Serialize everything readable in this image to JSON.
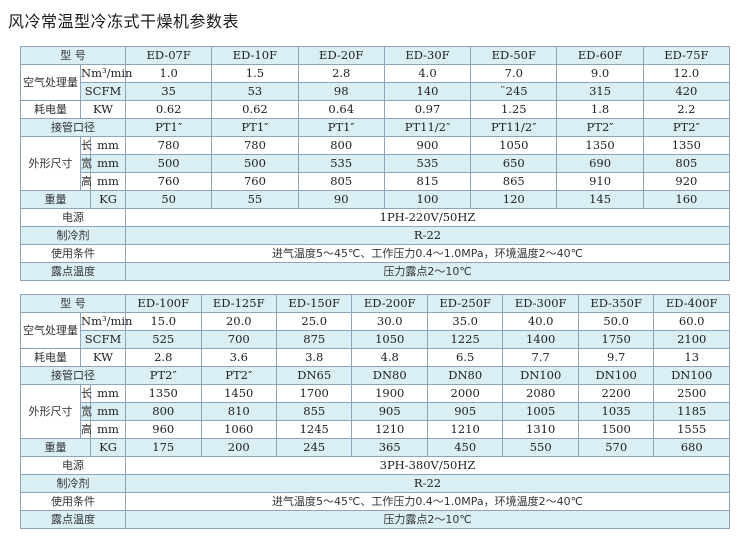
{
  "title": "风冷常温型冷冻式干燥机参数表",
  "labels": {
    "model": "型  号",
    "air": "空气处理量",
    "nm3": "Nm³/min",
    "scfm": "SCFM",
    "power": "耗电量",
    "kw": "KW",
    "pipe": "接管口径",
    "dims": "外形尺寸",
    "len": "长",
    "wid": "宽",
    "hgt": "高",
    "mm": "mm",
    "weight": "重量",
    "kg": "KG",
    "supply": "电源",
    "refrigerant": "制冷剂",
    "conditions": "使用条件",
    "dewpoint": "露点温度"
  },
  "colors": {
    "row_tint": "#d9eff4",
    "border": "#8fa4b8"
  },
  "tables": [
    {
      "models": [
        "ED-07F",
        "ED-10F",
        "ED-20F",
        "ED-30F",
        "ED-50F",
        "ED-60F",
        "ED-75F"
      ],
      "nm3": [
        "1.0",
        "1.5",
        "2.8",
        "4.0",
        "7.0",
        "9.0",
        "12.0"
      ],
      "scfm": [
        "35",
        "53",
        "98",
        "140",
        "¨245",
        "315",
        "420"
      ],
      "kw": [
        "0.62",
        "0.62",
        "0.64",
        "0.97",
        "1.25",
        "1.8",
        "2.2"
      ],
      "pipe": [
        "PT1″",
        "PT1″",
        "PT1″",
        "PT11/2″",
        "PT11/2″",
        "PT2″",
        "PT2″"
      ],
      "len": [
        "780",
        "780",
        "800",
        "900",
        "1050",
        "1350",
        "1350"
      ],
      "wid": [
        "500",
        "500",
        "535",
        "535",
        "650",
        "690",
        "805"
      ],
      "hgt": [
        "760",
        "760",
        "805",
        "815",
        "865",
        "910",
        "920"
      ],
      "kg": [
        "50",
        "55",
        "90",
        "100",
        "120",
        "145",
        "160"
      ],
      "supply": "1PH-220V/50HZ",
      "refrigerant": "R-22",
      "conditions": "进气温度5～45℃、工作压力0.4～1.0MPa，环境温度2～40℃",
      "dewpoint": "压力露点2～10℃"
    },
    {
      "models": [
        "ED-100F",
        "ED-125F",
        "ED-150F",
        "ED-200F",
        "ED-250F",
        "ED-300F",
        "ED-350F",
        "ED-400F"
      ],
      "nm3": [
        "15.0",
        "20.0",
        "25.0",
        "30.0",
        "35.0",
        "40.0",
        "50.0",
        "60.0"
      ],
      "scfm": [
        "525",
        "700",
        "875",
        "1050",
        "1225",
        "1400",
        "1750",
        "2100"
      ],
      "kw": [
        "2.8",
        "3.6",
        "3.8",
        "4.8",
        "6.5",
        "7.7",
        "9.7",
        "13"
      ],
      "pipe": [
        "PT2″",
        "PT2″",
        "DN65",
        "DN80",
        "DN80",
        "DN100",
        "DN100",
        "DN100"
      ],
      "len": [
        "1350",
        "1450",
        "1700",
        "1900",
        "2000",
        "2080",
        "2200",
        "2500"
      ],
      "wid": [
        "800",
        "810",
        "855",
        "905",
        "905",
        "1005",
        "1035",
        "1185"
      ],
      "hgt": [
        "960",
        "1060",
        "1245",
        "1210",
        "1210",
        "1310",
        "1500",
        "1555"
      ],
      "kg": [
        "175",
        "200",
        "245",
        "365",
        "450",
        "550",
        "570",
        "680"
      ],
      "supply": "3PH-380V/50HZ",
      "refrigerant": "R-22",
      "conditions": "进气温度5～45℃、工作压力0.4～1.0MPa，环境温度2～40℃",
      "dewpoint": "压力露点2～10℃"
    }
  ]
}
